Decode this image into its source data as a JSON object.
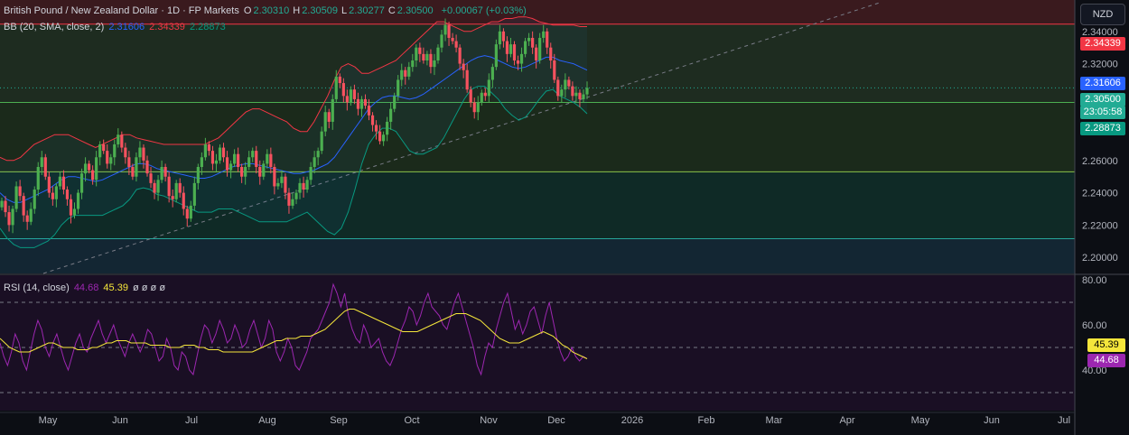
{
  "header": {
    "symbol": "British Pound / New Zealand Dollar · 1D · FP Markets",
    "ohlc": [
      {
        "key": "O",
        "value": "2.30310"
      },
      {
        "key": "H",
        "value": "2.30509"
      },
      {
        "key": "L",
        "value": "2.30277"
      },
      {
        "key": "C",
        "value": "2.30500"
      }
    ],
    "change": "+0.00067 (+0.03%)"
  },
  "bb_legend": {
    "label": "BB (20, SMA, close, 2)",
    "basis": "2.31606",
    "upper": "2.34339",
    "lower": "2.28873"
  },
  "rsi_legend": {
    "label": "RSI (14, close)",
    "rsi": "44.68",
    "ma": "45.39",
    "extras": [
      "ø",
      "ø",
      "ø",
      "ø"
    ]
  },
  "currency_button": "NZD",
  "price_tags": [
    {
      "text": "2.34339",
      "color": "#f23645"
    },
    {
      "text": "2.31606",
      "color": "#2962ff"
    },
    {
      "text": "2.30500",
      "color": "#22ab94"
    },
    {
      "text": "23:05:58",
      "color": "#22ab94"
    },
    {
      "text": "2.28873",
      "color": "#089981"
    }
  ],
  "rsi_tags": [
    {
      "text": "45.39",
      "color": "#f5e63b"
    },
    {
      "text": "44.68",
      "color": "#9c27b0"
    }
  ],
  "colors": {
    "up": "#4caf50",
    "down": "#f7525f",
    "bb_basis": "#2962ff",
    "bb_upper": "#f23645",
    "bb_lower": "#089981",
    "rsi": "#9c27b0",
    "rsi_ma": "#f5e63b"
  },
  "chart_data": [
    {
      "type": "candlestick",
      "yaxis_ticks": [
        "2.34000",
        "2.32000",
        "2.30000",
        "2.28000",
        "2.26000",
        "2.24000",
        "2.22000",
        "2.20000"
      ],
      "ylim": [
        2.19,
        2.355
      ],
      "x_ticks": [
        "May",
        "Jun",
        "Jul",
        "Aug",
        "Sep",
        "Oct",
        "Nov",
        "Dec",
        "2026",
        "Feb",
        "Mar",
        "Apr",
        "May",
        "Jun",
        "Jul"
      ],
      "horizontal_levels": [
        2.3445,
        2.296,
        2.253,
        2.2115
      ],
      "trendline": [
        [
          2.201,
          "start"
        ],
        [
          2.358,
          "end"
        ]
      ],
      "candles_close": [
        2.235,
        2.228,
        2.22,
        2.23,
        2.244,
        2.238,
        2.226,
        2.222,
        2.23,
        2.242,
        2.256,
        2.262,
        2.25,
        2.24,
        2.236,
        2.244,
        2.25,
        2.242,
        2.236,
        2.226,
        2.23,
        2.24,
        2.252,
        2.258,
        2.254,
        2.248,
        2.262,
        2.27,
        2.266,
        2.258,
        2.262,
        2.27,
        2.276,
        2.268,
        2.262,
        2.256,
        2.25,
        2.262,
        2.268,
        2.26,
        2.252,
        2.246,
        2.24,
        2.248,
        2.256,
        2.25,
        2.238,
        2.236,
        2.246,
        2.24,
        2.23,
        2.224,
        2.232,
        2.246,
        2.256,
        2.262,
        2.27,
        2.266,
        2.258,
        2.26,
        2.268,
        2.262,
        2.254,
        2.258,
        2.264,
        2.256,
        2.25,
        2.256,
        2.262,
        2.266,
        2.256,
        2.25,
        2.258,
        2.264,
        2.256,
        2.244,
        2.246,
        2.25,
        2.24,
        2.232,
        2.236,
        2.24,
        2.246,
        2.242,
        2.248,
        2.256,
        2.262,
        2.266,
        2.278,
        2.29,
        2.284,
        2.298,
        2.312,
        2.308,
        2.3,
        2.296,
        2.304,
        2.298,
        2.292,
        2.298,
        2.294,
        2.288,
        2.282,
        2.278,
        2.272,
        2.276,
        2.284,
        2.292,
        2.3,
        2.31,
        2.316,
        2.312,
        2.318,
        2.322,
        2.33,
        2.326,
        2.322,
        2.326,
        2.318,
        2.322,
        2.33,
        2.338,
        2.344,
        2.336,
        2.334,
        2.33,
        2.32,
        2.316,
        2.304,
        2.296,
        2.29,
        2.296,
        2.302,
        2.3,
        2.31,
        2.318,
        2.332,
        2.34,
        2.334,
        2.326,
        2.332,
        2.322,
        2.32,
        2.326,
        2.334,
        2.336,
        2.33,
        2.322,
        2.336,
        2.34,
        2.33,
        2.322,
        2.31,
        2.3,
        2.304,
        2.31,
        2.306,
        2.3,
        2.302,
        2.298,
        2.301,
        2.305
      ],
      "bb": {
        "basis": [
          2.24,
          2.236,
          2.234,
          2.234,
          2.236,
          2.238,
          2.24,
          2.242,
          2.245,
          2.248,
          2.25,
          2.25,
          2.249,
          2.248,
          2.247,
          2.248,
          2.25,
          2.252,
          2.254,
          2.256,
          2.258,
          2.258,
          2.257,
          2.255,
          2.254,
          2.253,
          2.252,
          2.251,
          2.25,
          2.249,
          2.249,
          2.25,
          2.252,
          2.254,
          2.256,
          2.257,
          2.258,
          2.258,
          2.257,
          2.256,
          2.255,
          2.254,
          2.253,
          2.252,
          2.252,
          2.253,
          2.254,
          2.256,
          2.258,
          2.262,
          2.268,
          2.274,
          2.28,
          2.286,
          2.292,
          2.296,
          2.299,
          2.3,
          2.3,
          2.299,
          2.298,
          2.299,
          2.301,
          2.304,
          2.307,
          2.31,
          2.313,
          2.316,
          2.319,
          2.322,
          2.324,
          2.325,
          2.324,
          2.322,
          2.32,
          2.318,
          2.317,
          2.318,
          2.32,
          2.322,
          2.324,
          2.324,
          2.322,
          2.321,
          2.32,
          2.318,
          2.316
        ],
        "upper": [
          2.262,
          2.26,
          2.26,
          2.262,
          2.266,
          2.27,
          2.272,
          2.274,
          2.276,
          2.276,
          2.276,
          2.274,
          2.272,
          2.27,
          2.268,
          2.27,
          2.272,
          2.274,
          2.276,
          2.276,
          2.274,
          2.273,
          2.272,
          2.271,
          2.27,
          2.27,
          2.27,
          2.27,
          2.27,
          2.27,
          2.27,
          2.272,
          2.274,
          2.278,
          2.282,
          2.286,
          2.29,
          2.292,
          2.292,
          2.29,
          2.288,
          2.286,
          2.284,
          2.28,
          2.278,
          2.278,
          2.284,
          2.292,
          2.3,
          2.31,
          2.318,
          2.32,
          2.318,
          2.314,
          2.314,
          2.316,
          2.318,
          2.32,
          2.322,
          2.326,
          2.33,
          2.334,
          2.338,
          2.342,
          2.346,
          2.346,
          2.344,
          2.342,
          2.34,
          2.34,
          2.342,
          2.344,
          2.346,
          2.346,
          2.348,
          2.348,
          2.349,
          2.349,
          2.348,
          2.346,
          2.345,
          2.344,
          2.344,
          2.344,
          2.344,
          2.343,
          2.343
        ],
        "lower": [
          2.218,
          2.212,
          2.208,
          2.206,
          2.206,
          2.206,
          2.208,
          2.21,
          2.214,
          2.22,
          2.224,
          2.226,
          2.226,
          2.226,
          2.226,
          2.226,
          2.228,
          2.23,
          2.232,
          2.236,
          2.242,
          2.243,
          2.242,
          2.239,
          2.238,
          2.236,
          2.234,
          2.232,
          2.23,
          2.228,
          2.228,
          2.228,
          2.23,
          2.23,
          2.23,
          2.228,
          2.226,
          2.224,
          2.222,
          2.222,
          2.222,
          2.222,
          2.222,
          2.224,
          2.226,
          2.228,
          2.224,
          2.22,
          2.216,
          2.214,
          2.218,
          2.228,
          2.242,
          2.258,
          2.27,
          2.276,
          2.28,
          2.28,
          2.278,
          2.272,
          2.266,
          2.264,
          2.264,
          2.266,
          2.268,
          2.274,
          2.282,
          2.29,
          2.298,
          2.304,
          2.306,
          2.306,
          2.302,
          2.298,
          2.292,
          2.288,
          2.285,
          2.287,
          2.292,
          2.298,
          2.303,
          2.304,
          2.3,
          2.298,
          2.296,
          2.293,
          2.289
        ]
      }
    },
    {
      "type": "line",
      "title": "RSI (14, close)",
      "yaxis_ticks": [
        "80.00",
        "60.00",
        "40.00"
      ],
      "ylim": [
        22,
        82
      ],
      "levels": [
        70,
        50,
        30
      ],
      "series": [
        {
          "name": "RSI",
          "values": [
            52,
            46,
            42,
            48,
            56,
            52,
            44,
            40,
            48,
            56,
            62,
            58,
            50,
            46,
            52,
            56,
            50,
            44,
            40,
            46,
            52,
            56,
            50,
            48,
            54,
            58,
            62,
            56,
            52,
            56,
            60,
            54,
            50,
            46,
            52,
            56,
            52,
            48,
            52,
            58,
            56,
            50,
            44,
            46,
            54,
            50,
            42,
            40,
            48,
            46,
            40,
            38,
            46,
            54,
            60,
            58,
            52,
            56,
            62,
            58,
            52,
            54,
            60,
            56,
            50,
            52,
            58,
            62,
            56,
            50,
            54,
            62,
            58,
            48,
            44,
            48,
            54,
            50,
            42,
            40,
            44,
            48,
            54,
            56,
            58,
            62,
            66,
            70,
            78,
            74,
            68,
            74,
            64,
            58,
            54,
            52,
            60,
            56,
            50,
            52,
            54,
            48,
            44,
            42,
            46,
            52,
            58,
            62,
            68,
            66,
            60,
            64,
            70,
            74,
            68,
            66,
            64,
            60,
            58,
            64,
            70,
            74,
            68,
            62,
            56,
            50,
            42,
            38,
            46,
            52,
            50,
            58,
            64,
            70,
            74,
            66,
            58,
            62,
            56,
            60,
            66,
            68,
            62,
            56,
            64,
            70,
            62,
            54,
            48,
            44,
            46,
            50,
            46,
            44,
            46,
            45
          ]
        },
        {
          "name": "RSI-based MA",
          "values": [
            54,
            52,
            50,
            49,
            48,
            48,
            48,
            49,
            50,
            51,
            52,
            52,
            51,
            50,
            50,
            50,
            49,
            49,
            49,
            50,
            50,
            51,
            52,
            52,
            53,
            53,
            53,
            52,
            52,
            52,
            52,
            51,
            51,
            51,
            51,
            50,
            50,
            50,
            51,
            51,
            51,
            50,
            50,
            49,
            49,
            49,
            48,
            48,
            48,
            48,
            48,
            48,
            48,
            49,
            50,
            51,
            52,
            53,
            53,
            54,
            54,
            54,
            55,
            55,
            55,
            56,
            57,
            58,
            60,
            62,
            64,
            66,
            67,
            67,
            66,
            65,
            64,
            63,
            62,
            61,
            60,
            59,
            58,
            57,
            57,
            57,
            57,
            58,
            59,
            60,
            61,
            62,
            63,
            64,
            65,
            65,
            65,
            64,
            63,
            62,
            60,
            58,
            56,
            54,
            53,
            52,
            52,
            52,
            53,
            54,
            55,
            56,
            57,
            56,
            55,
            53,
            51,
            50,
            48,
            47,
            46,
            45
          ]
        }
      ]
    }
  ]
}
